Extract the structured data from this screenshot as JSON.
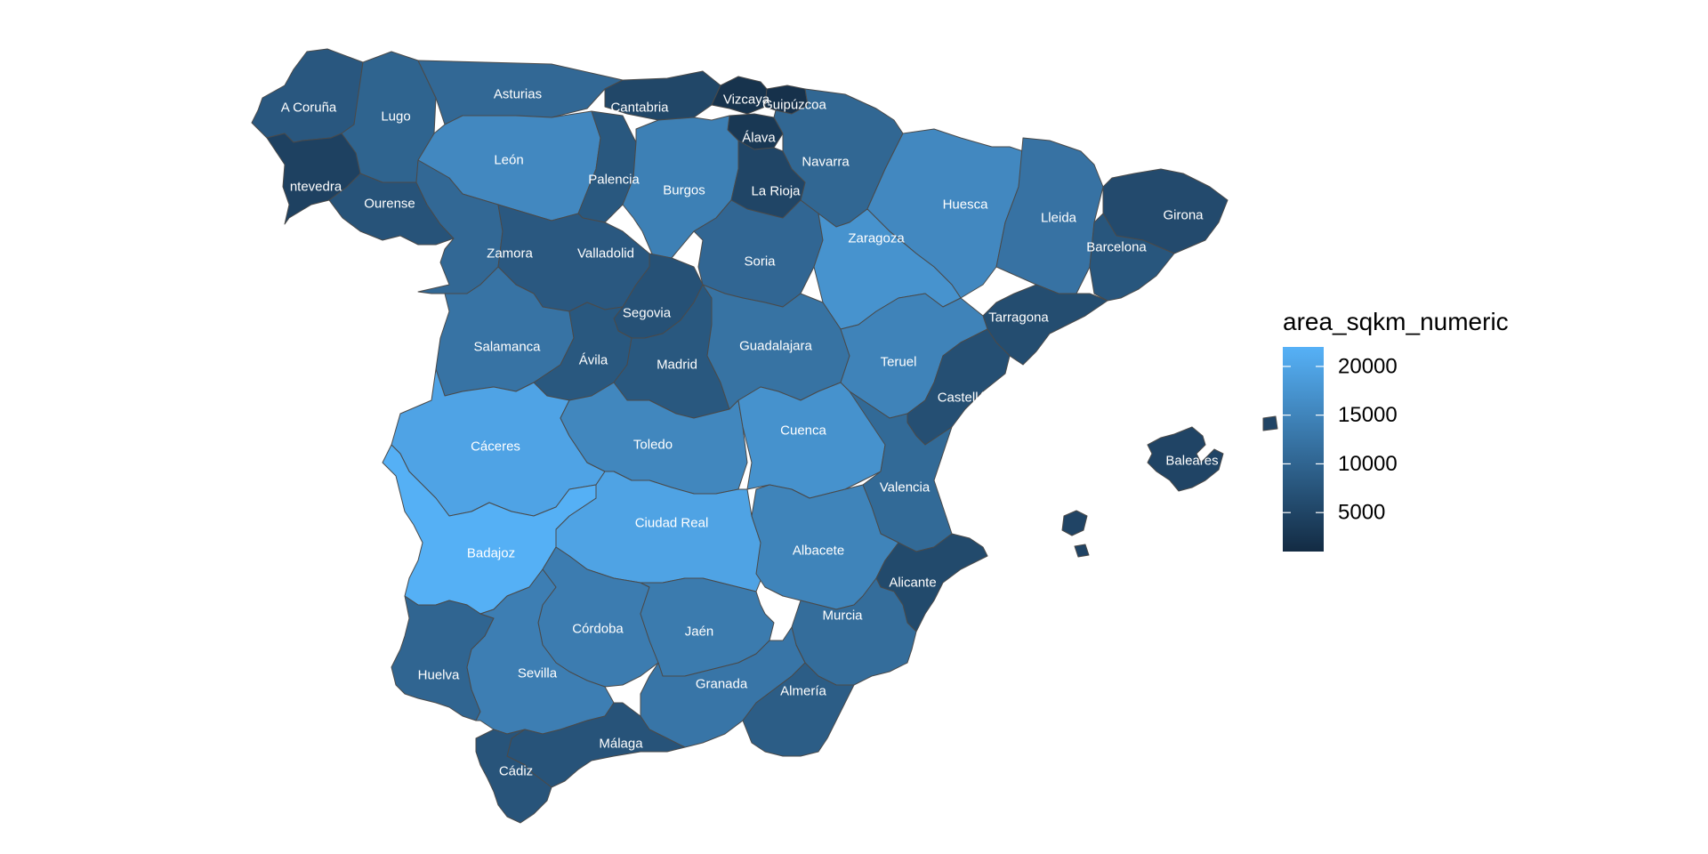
{
  "legend": {
    "title": "area_sqkm_numeric",
    "ticks": [
      {
        "label": "20000",
        "value": 20000
      },
      {
        "label": "15000",
        "value": 15000
      },
      {
        "label": "10000",
        "value": 10000
      },
      {
        "label": "5000",
        "value": 5000
      }
    ],
    "min": 1000,
    "max": 22000,
    "color_low": "#132b43",
    "color_high": "#56b1f7"
  },
  "provinces": [
    {
      "name": "A Coruña",
      "label": "A Coruña",
      "value": 7950
    },
    {
      "name": "Lugo",
      "label": "Lugo",
      "value": 9856
    },
    {
      "name": "Asturias",
      "label": "Asturias",
      "value": 10604
    },
    {
      "name": "Cantabria",
      "label": "Cantabria",
      "value": 5321
    },
    {
      "name": "Vizcaya",
      "label": "Vizcaya",
      "value": 2217
    },
    {
      "name": "Guipúzcoa",
      "label": "Guipúzcoa",
      "value": 1980
    },
    {
      "name": "Álava",
      "label": "Álava",
      "value": 3037
    },
    {
      "name": "Navarra",
      "label": "Navarra",
      "value": 10391
    },
    {
      "name": "León",
      "label": "León",
      "value": 15581
    },
    {
      "name": "Palencia",
      "label": "Palencia",
      "value": 8052
    },
    {
      "name": "Burgos",
      "label": "Burgos",
      "value": 14292
    },
    {
      "name": "La Rioja",
      "label": "La Rioja",
      "value": 5045
    },
    {
      "name": "Huesca",
      "label": "Huesca",
      "value": 15636
    },
    {
      "name": "Lleida",
      "label": "Lleida",
      "value": 12172
    },
    {
      "name": "Girona",
      "label": "Girona",
      "value": 5910
    },
    {
      "name": "Pontevedra",
      "label": "ntevedra",
      "value": 4495
    },
    {
      "name": "Ourense",
      "label": "Ourense",
      "value": 7273
    },
    {
      "name": "Zamora",
      "label": "Zamora",
      "value": 10561
    },
    {
      "name": "Valladolid",
      "label": "Valladolid",
      "value": 8110
    },
    {
      "name": "Soria",
      "label": "Soria",
      "value": 10306
    },
    {
      "name": "Zaragoza",
      "label": "Zaragoza",
      "value": 17274
    },
    {
      "name": "Barcelona",
      "label": "Barcelona",
      "value": 7726
    },
    {
      "name": "Segovia",
      "label": "Segovia",
      "value": 6921
    },
    {
      "name": "Tarragona",
      "label": "Tarragona",
      "value": 6303
    },
    {
      "name": "Salamanca",
      "label": "Salamanca",
      "value": 12350
    },
    {
      "name": "Ávila",
      "label": "Ávila",
      "value": 8050
    },
    {
      "name": "Madrid",
      "label": "Madrid",
      "value": 8028
    },
    {
      "name": "Guadalajara",
      "label": "Guadalajara",
      "value": 12214
    },
    {
      "name": "Teruel",
      "label": "Teruel",
      "value": 14810
    },
    {
      "name": "Castellón",
      "label": "Castellón",
      "value": 6636
    },
    {
      "name": "Cáceres",
      "label": "Cáceres",
      "value": 19868
    },
    {
      "name": "Toledo",
      "label": "Toledo",
      "value": 15370
    },
    {
      "name": "Cuenca",
      "label": "Cuenca",
      "value": 17140
    },
    {
      "name": "Valencia",
      "label": "Valencia",
      "value": 10806
    },
    {
      "name": "Baleares",
      "label": "Baleares",
      "value": 4992
    },
    {
      "name": "Ciudad Real",
      "label": "Ciudad Real",
      "value": 19813
    },
    {
      "name": "Badajoz",
      "label": "Badajoz",
      "value": 21766
    },
    {
      "name": "Albacete",
      "label": "Albacete",
      "value": 14926
    },
    {
      "name": "Alicante",
      "label": "Alicante",
      "value": 5816
    },
    {
      "name": "Murcia",
      "label": "Murcia",
      "value": 11313
    },
    {
      "name": "Córdoba",
      "label": "Córdoba",
      "value": 13771
    },
    {
      "name": "Jaén",
      "label": "Jaén",
      "value": 13496
    },
    {
      "name": "Huelva",
      "label": "Huelva",
      "value": 10128
    },
    {
      "name": "Sevilla",
      "label": "Sevilla",
      "value": 14036
    },
    {
      "name": "Granada",
      "label": "Granada",
      "value": 12647
    },
    {
      "name": "Almería",
      "label": "Almería",
      "value": 8775
    },
    {
      "name": "Málaga",
      "label": "Málaga",
      "value": 7308
    },
    {
      "name": "Cádiz",
      "label": "Cádiz",
      "value": 7436
    }
  ]
}
